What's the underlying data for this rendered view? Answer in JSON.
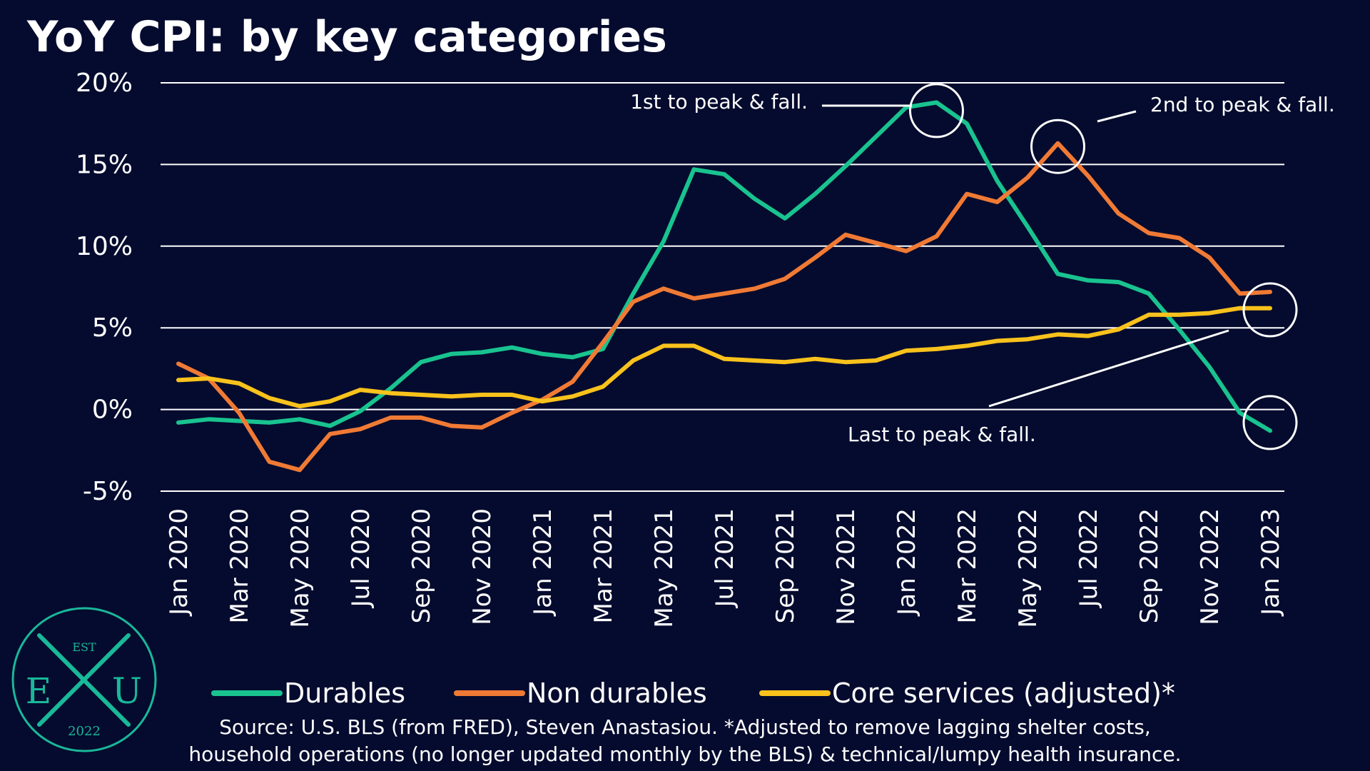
{
  "chart_data": {
    "type": "line",
    "title": "YoY CPI: by key categories",
    "xlabel": "",
    "ylabel": "",
    "ylim": [
      -5,
      20
    ],
    "y_ticks": [
      "20%",
      "15%",
      "10%",
      "5%",
      "0%",
      "-5%"
    ],
    "y_tick_values": [
      20,
      15,
      10,
      5,
      0,
      -5
    ],
    "grid": true,
    "x": [
      "Jan 2020",
      "Feb 2020",
      "Mar 2020",
      "Apr 2020",
      "May 2020",
      "Jun 2020",
      "Jul 2020",
      "Aug 2020",
      "Sep 2020",
      "Oct 2020",
      "Nov 2020",
      "Dec 2020",
      "Jan 2021",
      "Feb 2021",
      "Mar 2021",
      "Apr 2021",
      "May 2021",
      "Jun 2021",
      "Jul 2021",
      "Aug 2021",
      "Sep 2021",
      "Oct 2021",
      "Nov 2021",
      "Dec 2021",
      "Jan 2022",
      "Feb 2022",
      "Mar 2022",
      "Apr 2022",
      "May 2022",
      "Jun 2022",
      "Jul 2022",
      "Aug 2022",
      "Sep 2022",
      "Oct 2022",
      "Nov 2022",
      "Dec 2022",
      "Jan 2023"
    ],
    "x_tick_labels": [
      "Jan 2020",
      "Mar 2020",
      "May 2020",
      "Jul 2020",
      "Sep 2020",
      "Nov 2020",
      "Jan 2021",
      "Mar 2021",
      "May 2021",
      "Jul 2021",
      "Sep 2021",
      "Nov 2021",
      "Jan 2022",
      "Mar 2022",
      "May 2022",
      "Jul 2022",
      "Sep 2022",
      "Nov 2022",
      "Jan 2023"
    ],
    "series": [
      {
        "name": "Durables",
        "color": "#19c38f",
        "values": [
          -0.8,
          -0.6,
          -0.7,
          -0.8,
          -0.6,
          -1.0,
          -0.1,
          1.3,
          2.9,
          3.4,
          3.5,
          3.8,
          3.4,
          3.2,
          3.7,
          7.1,
          10.3,
          14.7,
          14.4,
          12.9,
          11.7,
          13.2,
          14.9,
          16.7,
          18.5,
          18.8,
          17.5,
          14.0,
          11.2,
          8.3,
          7.9,
          7.8,
          7.1,
          4.9,
          2.6,
          -0.2,
          -1.3
        ]
      },
      {
        "name": "Non durables",
        "color": "#f07a35",
        "values": [
          2.8,
          1.9,
          -0.2,
          -3.2,
          -3.7,
          -1.5,
          -1.2,
          -0.5,
          -0.5,
          -1.0,
          -1.1,
          -0.2,
          0.6,
          1.7,
          4.1,
          6.6,
          7.4,
          6.8,
          7.1,
          7.4,
          8.0,
          9.3,
          10.7,
          10.2,
          9.7,
          10.6,
          13.2,
          12.7,
          14.2,
          16.3,
          14.3,
          12.0,
          10.8,
          10.5,
          9.3,
          7.1,
          7.2
        ]
      },
      {
        "name": "Core services (adjusted)*",
        "color": "#f9c21c",
        "values": [
          1.8,
          1.9,
          1.6,
          0.7,
          0.2,
          0.5,
          1.2,
          1.0,
          0.9,
          0.8,
          0.9,
          0.9,
          0.5,
          0.8,
          1.4,
          3.0,
          3.9,
          3.9,
          3.1,
          3.0,
          2.9,
          3.1,
          2.9,
          3.0,
          3.6,
          3.7,
          3.9,
          4.2,
          4.3,
          4.6,
          4.5,
          4.9,
          5.8,
          5.8,
          5.9,
          6.2,
          6.2
        ]
      }
    ],
    "legend_position": "bottom",
    "annotations": [
      {
        "text": "1st to peak & fall.",
        "series": "Durables",
        "x": "Feb 2022",
        "y": 18.3
      },
      {
        "text": "2nd to peak & fall.",
        "series": "Non durables",
        "x": "Jun 2022",
        "y": 16.1
      },
      {
        "text": "Last to peak & fall.",
        "series": "Core services (adjusted)*",
        "x": "Jan 2023",
        "y": 6.1,
        "also_x": "Jan 2023",
        "also_y": -0.8
      }
    ],
    "source": "Source: U.S. BLS (from FRED), Steven Anastasiou. *Adjusted to remove lagging shelter costs,",
    "source_line2": "household operations (no longer updated monthly by the BLS) & technical/lumpy health insurance."
  },
  "logo": {
    "top": "EST",
    "left": "E",
    "center": "X",
    "right": "U",
    "year": "2022",
    "color": "#19b899"
  },
  "colors": {
    "background": "#050b2e",
    "grid": "#ffffff",
    "text": "#ffffff"
  }
}
